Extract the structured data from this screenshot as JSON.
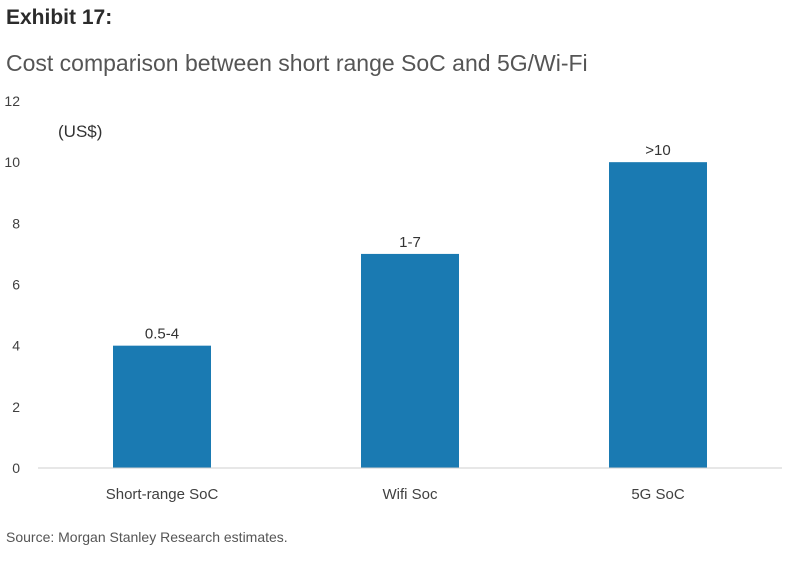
{
  "header": {
    "exhibit": "Exhibit 17:",
    "title": "Cost comparison between short range SoC and 5G/Wi-Fi"
  },
  "footer": {
    "source": "Source: Morgan Stanley Research estimates."
  },
  "chart_data": {
    "type": "bar",
    "title": "Cost comparison between short range SoC and 5G/Wi-Fi",
    "unit_label": "(US$)",
    "categories": [
      "Short-range SoC",
      "Wifi Soc",
      "5G SoC"
    ],
    "values": [
      4,
      7,
      10
    ],
    "data_labels": [
      "0.5-4",
      "1-7",
      ">10"
    ],
    "ylim": [
      0,
      12
    ],
    "yticks": [
      0,
      2,
      4,
      6,
      8,
      10,
      12
    ],
    "grid": false,
    "legend": "none",
    "bar_color": "#1a7ab2",
    "xlabel": "",
    "ylabel": ""
  }
}
